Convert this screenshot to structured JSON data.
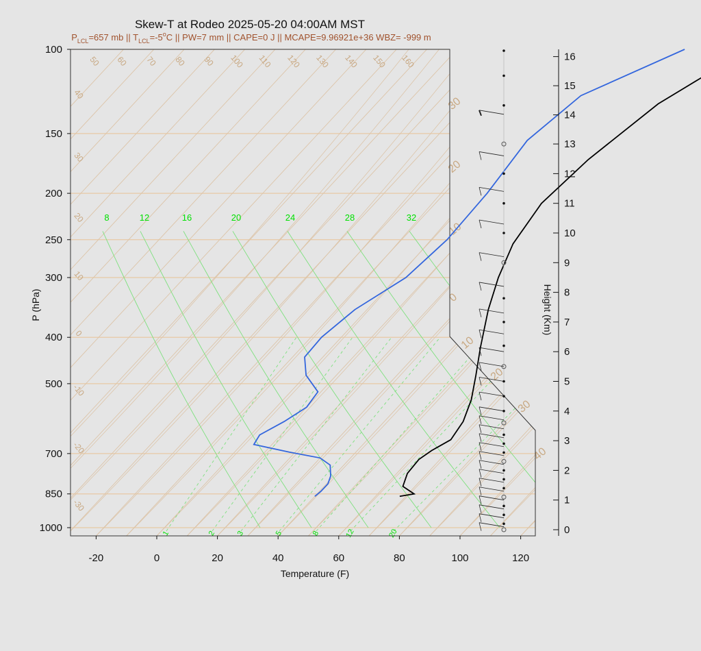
{
  "chart_data": {
    "type": "line",
    "title": "Skew-T at Rodeo 2025-05-20 04:00AM MST",
    "subtitle": {
      "p_lcl_sym": "P",
      "p_lcl_sub": "LCL",
      "p_lcl_val": "=657 mb || ",
      "t_lcl_sym": "T",
      "t_lcl_sub": "LCL",
      "t_lcl_val": "=-5",
      "deg": "o",
      "rest": "C || PW=7 mm || CAPE=0 J || MCAPE=9.96921e+36 WBZ= -999 m"
    },
    "xlabel": "Temperature (F)",
    "ylabel": "P (hPa)",
    "y2label": "Height (Km)",
    "x_ticks": [
      "-20",
      "0",
      "20",
      "40",
      "60",
      "80",
      "100",
      "120"
    ],
    "x_tick_values": [
      -20,
      0,
      20,
      40,
      60,
      80,
      100,
      120
    ],
    "p_ticks": [
      "100",
      "150",
      "200",
      "250",
      "300",
      "400",
      "500",
      "700",
      "850",
      "1000"
    ],
    "p_tick_values": [
      100,
      150,
      200,
      250,
      300,
      400,
      500,
      700,
      850,
      1000
    ],
    "height_ticks": [
      "0",
      "1",
      "2",
      "3",
      "4",
      "5",
      "6",
      "7",
      "8",
      "9",
      "10",
      "11",
      "12",
      "13",
      "14",
      "15",
      "16"
    ],
    "mixing_ratio_labels": [
      "8",
      "12",
      "16",
      "20",
      "24",
      "28",
      "32"
    ],
    "bottom_mixing_labels": [
      "1",
      "2",
      "3",
      "5",
      "8",
      "12",
      "20"
    ],
    "isotherm_labels_top": [
      "50",
      "60",
      "70",
      "80",
      "90",
      "100",
      "110",
      "120",
      "130",
      "140",
      "150",
      "160"
    ],
    "isotherm_labels_left": [
      "40",
      "30",
      "20",
      "10",
      "0",
      "-10",
      "-20",
      "-30"
    ],
    "adiabat_labels_right": [
      "30",
      "20",
      "10",
      "0",
      "10",
      "20",
      "30",
      "40"
    ],
    "series": [
      {
        "name": "temperature",
        "color": "#000000",
        "points_p_tempF": [
          [
            860,
            68
          ],
          [
            850,
            72
          ],
          [
            820,
            66
          ],
          [
            770,
            63.5
          ],
          [
            720,
            63
          ],
          [
            690,
            64.5
          ],
          [
            655,
            67.5
          ],
          [
            600,
            66
          ],
          [
            540,
            62
          ],
          [
            480,
            56
          ],
          [
            420,
            49
          ],
          [
            350,
            40
          ],
          [
            300,
            33.5
          ],
          [
            255,
            28
          ],
          [
            210,
            25
          ],
          [
            170,
            27
          ],
          [
            130,
            33
          ],
          [
            100,
            46
          ]
        ]
      },
      {
        "name": "dewpoint",
        "color": "#3366dd",
        "points_p_tempF": [
          [
            860,
            40
          ],
          [
            840,
            40.5
          ],
          [
            810,
            40.5
          ],
          [
            780,
            39
          ],
          [
            740,
            35.5
          ],
          [
            715,
            30
          ],
          [
            695,
            18
          ],
          [
            670,
            4
          ],
          [
            640,
            3
          ],
          [
            600,
            7
          ],
          [
            560,
            10
          ],
          [
            520,
            9
          ],
          [
            480,
            0
          ],
          [
            440,
            -6
          ],
          [
            400,
            -6.5
          ],
          [
            350,
            -4
          ],
          [
            300,
            3
          ],
          [
            250,
            5
          ],
          [
            200,
            4
          ],
          [
            155,
            1
          ],
          [
            125,
            5
          ],
          [
            100,
            25
          ]
        ]
      }
    ],
    "wind_barb_heights_km": [
      0.1,
      0.4,
      0.7,
      1.0,
      1.3,
      1.6,
      1.9,
      2.2,
      2.5,
      2.8,
      3.1,
      3.4,
      3.7,
      4.0,
      4.5,
      5.0,
      5.5,
      6.0,
      6.6,
      7.3,
      8.2,
      9.2,
      10.3,
      11.4,
      12.6,
      14.0
    ],
    "height_dots_km": [
      0,
      0.2,
      0.5,
      0.8,
      1.1,
      1.4,
      1.7,
      2.0,
      2.3,
      2.6,
      2.9,
      3.2,
      3.6,
      4.0,
      4.5,
      5.0,
      5.5,
      6.2,
      7.0,
      7.8,
      9.0,
      10.0,
      11.0,
      12.0,
      13.0,
      14.3,
      15.3,
      16.2
    ]
  }
}
